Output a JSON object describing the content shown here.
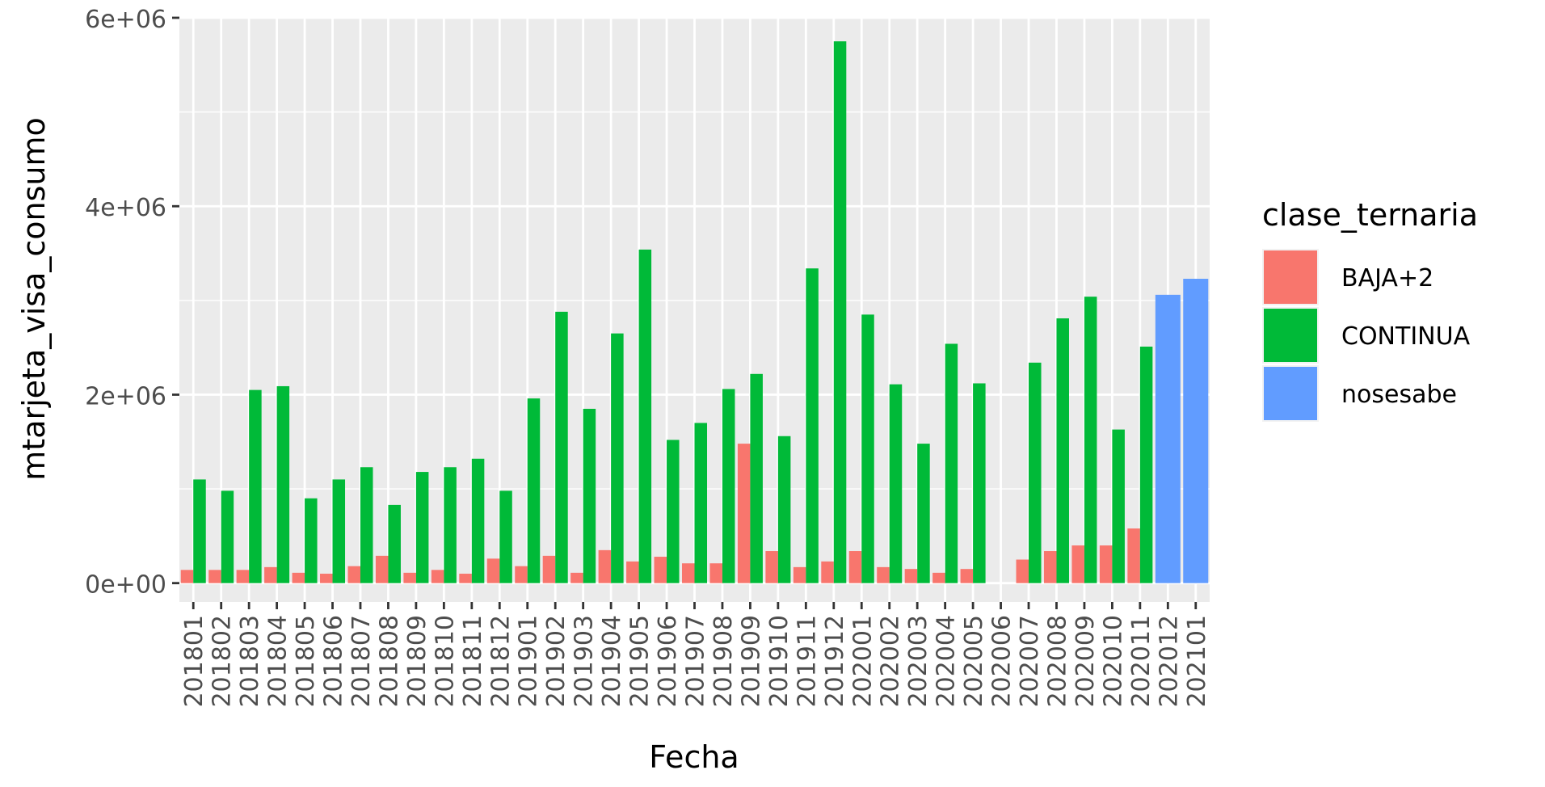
{
  "chart_data": {
    "type": "bar",
    "xlabel": "Fecha",
    "ylabel": "mtarjeta_visa_consumo",
    "ylim": [
      -200000,
      6000000
    ],
    "yticks": [
      0,
      2000000,
      4000000,
      6000000
    ],
    "ytick_labels": [
      "0e+00",
      "2e+06",
      "4e+06",
      "6e+06"
    ],
    "grid": true,
    "legend_position": "right",
    "legend_title": "clase_ternaria",
    "categories": [
      "201801",
      "201802",
      "201803",
      "201804",
      "201805",
      "201806",
      "201807",
      "201808",
      "201809",
      "201810",
      "201811",
      "201812",
      "201901",
      "201902",
      "201903",
      "201904",
      "201905",
      "201906",
      "201907",
      "201908",
      "201909",
      "201910",
      "201911",
      "201912",
      "202001",
      "202002",
      "202003",
      "202004",
      "202005",
      "202006",
      "202007",
      "202008",
      "202009",
      "202010",
      "202011",
      "202012",
      "202101"
    ],
    "series": [
      {
        "name": "BAJA+2",
        "color": "#F8766D",
        "values": [
          140000,
          140000,
          140000,
          170000,
          110000,
          100000,
          180000,
          290000,
          110000,
          140000,
          100000,
          260000,
          180000,
          290000,
          110000,
          350000,
          230000,
          280000,
          210000,
          210000,
          1480000,
          340000,
          170000,
          230000,
          340000,
          170000,
          150000,
          110000,
          150000,
          null,
          250000,
          340000,
          400000,
          400000,
          580000,
          null,
          null
        ]
      },
      {
        "name": "CONTINUA",
        "color": "#00BA38",
        "values": [
          1100000,
          980000,
          2050000,
          2090000,
          900000,
          1100000,
          1230000,
          830000,
          1180000,
          1230000,
          1320000,
          980000,
          1960000,
          2880000,
          1850000,
          2650000,
          3540000,
          1520000,
          1700000,
          2060000,
          2220000,
          1560000,
          3340000,
          5750000,
          2850000,
          2110000,
          1480000,
          2540000,
          2120000,
          null,
          2340000,
          2810000,
          3040000,
          1630000,
          2510000,
          null,
          null
        ]
      },
      {
        "name": "nosesabe",
        "color": "#619CFF",
        "values": [
          null,
          null,
          null,
          null,
          null,
          null,
          null,
          null,
          null,
          null,
          null,
          null,
          null,
          null,
          null,
          null,
          null,
          null,
          null,
          null,
          null,
          null,
          null,
          null,
          null,
          null,
          null,
          null,
          null,
          null,
          null,
          null,
          null,
          null,
          null,
          3060000,
          3230000
        ]
      }
    ]
  }
}
